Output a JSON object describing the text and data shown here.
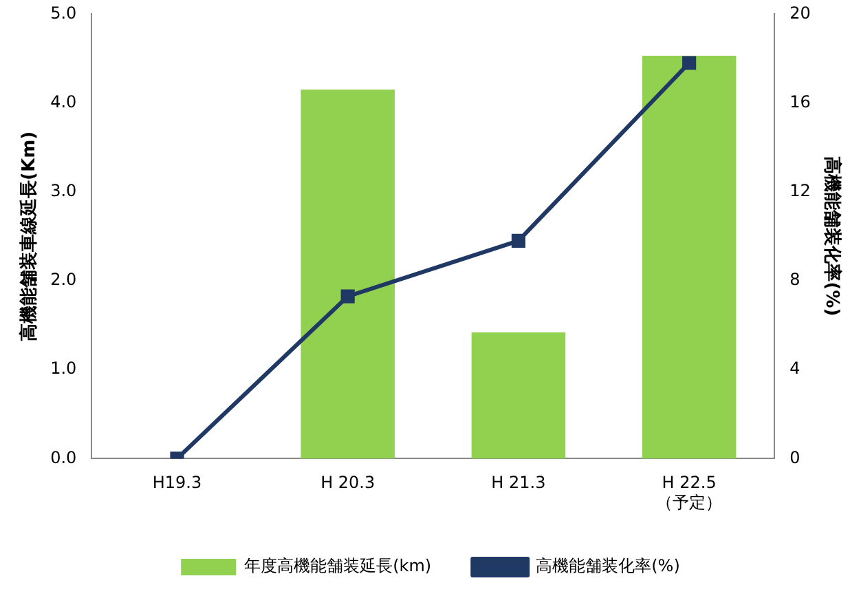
{
  "chart_data": {
    "type": "bar",
    "ylabel": "高機能舗装車線延長(Km)",
    "y2label": "高機能舗装化率(%)",
    "categories": [
      "H19.3",
      "H 20.3",
      "H 21.3",
      "H 22.5\n（予定）"
    ],
    "series": [
      {
        "name": "年度高機能舗装延長(km)",
        "color": "#92d050",
        "values": [
          0,
          4.15,
          1.42,
          4.53
        ]
      },
      {
        "name": "高機能舗装化率(%)",
        "type": "line",
        "color": "#1f3864",
        "axis": "y2",
        "marker": "square",
        "values": [
          0,
          7.3,
          9.8,
          17.8
        ]
      }
    ],
    "ylim": [
      0,
      5
    ],
    "yticks": [
      {
        "value": 0,
        "label": "0.0"
      },
      {
        "value": 1,
        "label": "1.0"
      },
      {
        "value": 2,
        "label": "2.0"
      },
      {
        "value": 3,
        "label": "3.0"
      },
      {
        "value": 4,
        "label": "4.0"
      },
      {
        "value": 5,
        "label": "5.0"
      }
    ],
    "y2lim": [
      0,
      20
    ],
    "y2ticks": [
      0,
      4,
      8,
      12,
      16,
      20
    ],
    "legend": "bottom"
  }
}
